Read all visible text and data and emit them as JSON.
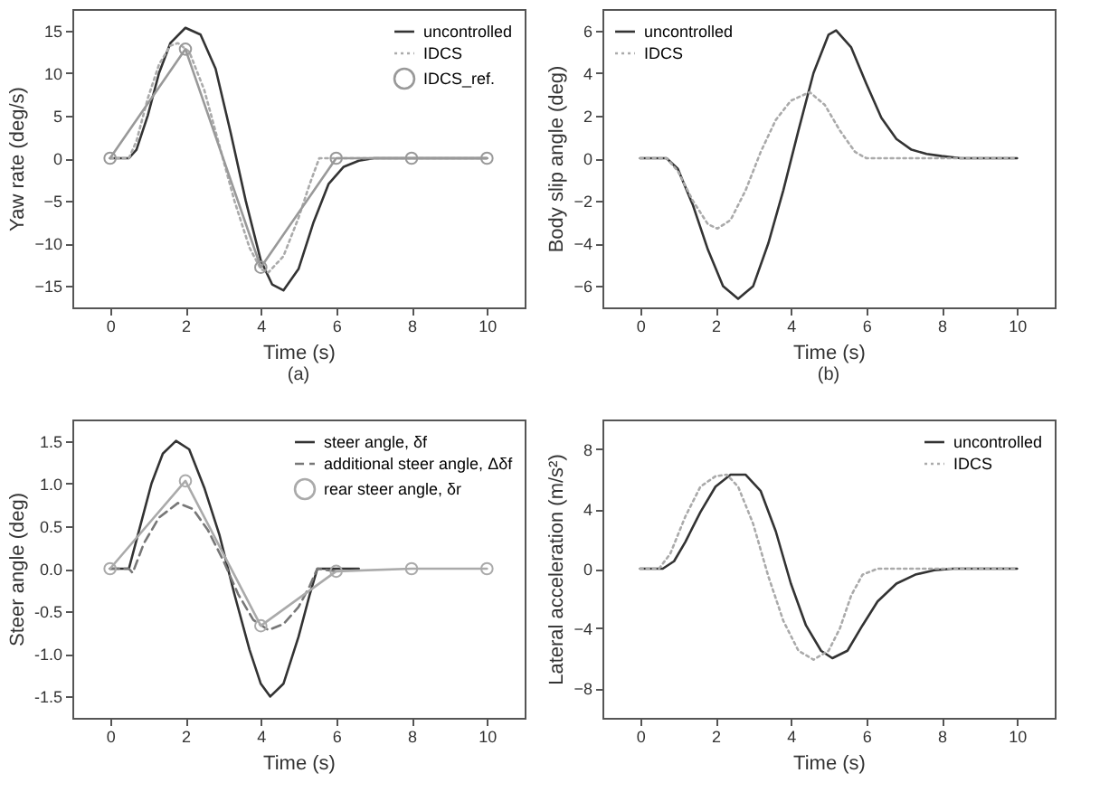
{
  "chart_data": [
    {
      "type": "line",
      "xlabel": "Time (s)",
      "ylabel": "Yaw rate (deg/s)",
      "annotations": [
        "(a)"
      ],
      "xlim": [
        -1,
        11
      ],
      "xticks": [
        0,
        2,
        4,
        6,
        8,
        10
      ],
      "ylim": [
        -17.5,
        17.5
      ],
      "yticks": [
        -15,
        -10,
        -5,
        0,
        5,
        10,
        15
      ],
      "grid": false,
      "legend": "top right",
      "series": [
        {
          "name": "uncontrolled",
          "color": "#333333",
          "line_style": "solid",
          "marker": "none",
          "x": [
            0,
            0.5,
            0.7,
            1.0,
            1.3,
            1.6,
            2.0,
            2.4,
            2.8,
            3.2,
            3.6,
            4.0,
            4.3,
            4.6,
            5.0,
            5.4,
            5.8,
            6.2,
            6.6,
            7.0,
            8,
            10
          ],
          "values": [
            0,
            0,
            1,
            5,
            10,
            13.5,
            15.3,
            14.5,
            10.5,
            3,
            -5,
            -12,
            -14.8,
            -15.5,
            -13,
            -7.5,
            -3,
            -1,
            -0.3,
            0,
            0,
            0
          ]
        },
        {
          "name": "IDCS",
          "color": "#aaaaaa",
          "line_style": "dotted",
          "marker": "none",
          "x": [
            0,
            0.5,
            0.7,
            1.0,
            1.3,
            1.6,
            1.8,
            2.1,
            2.5,
            2.9,
            3.3,
            3.7,
            4.0,
            4.2,
            4.6,
            5.0,
            5.3,
            5.55,
            6,
            8,
            10
          ],
          "values": [
            0,
            0,
            2,
            7,
            11,
            13.2,
            13.5,
            12.5,
            8,
            1.5,
            -5,
            -10.5,
            -13,
            -13.4,
            -11.5,
            -7,
            -3,
            0,
            0,
            0,
            0
          ]
        },
        {
          "name": "IDCS_ref.",
          "color": "#999999",
          "line_style": "solid",
          "marker": "circle",
          "x": [
            0,
            2,
            4,
            6,
            8,
            10
          ],
          "values": [
            0,
            12.8,
            -12.8,
            0,
            0,
            0
          ]
        }
      ]
    },
    {
      "type": "line",
      "xlabel": "Time (s)",
      "ylabel": "Body slip angle (deg)",
      "annotations": [
        "(b)"
      ],
      "xlim": [
        -1,
        11
      ],
      "xticks": [
        0,
        2,
        4,
        6,
        8,
        10
      ],
      "ylim": [
        -7,
        7
      ],
      "yticks": [
        -6,
        -4,
        -2,
        0,
        2,
        4,
        6
      ],
      "grid": false,
      "legend": "top left",
      "series": [
        {
          "name": "uncontrolled",
          "color": "#333333",
          "line_style": "solid",
          "marker": "none",
          "x": [
            0,
            0.7,
            1.0,
            1.4,
            1.8,
            2.2,
            2.6,
            3.0,
            3.4,
            3.8,
            4.2,
            4.6,
            5.0,
            5.2,
            5.6,
            6.0,
            6.4,
            6.8,
            7.2,
            7.6,
            8,
            8.5,
            10
          ],
          "values": [
            0,
            0,
            -0.5,
            -2.2,
            -4.3,
            -6,
            -6.6,
            -6,
            -4,
            -1.5,
            1.3,
            4,
            5.8,
            6,
            5.2,
            3.5,
            1.9,
            0.9,
            0.4,
            0.2,
            0.1,
            0,
            0
          ]
        },
        {
          "name": "IDCS",
          "color": "#aaaaaa",
          "line_style": "dotted",
          "marker": "none",
          "x": [
            0,
            0.7,
            1.0,
            1.4,
            1.8,
            2.05,
            2.4,
            2.8,
            3.2,
            3.6,
            4.0,
            4.5,
            4.9,
            5.3,
            5.7,
            6.0,
            7,
            10
          ],
          "values": [
            0,
            0,
            -0.6,
            -2,
            -3.1,
            -3.3,
            -2.9,
            -1.5,
            0.3,
            1.8,
            2.7,
            3.1,
            2.5,
            1.3,
            0.3,
            0,
            0,
            0
          ]
        }
      ]
    },
    {
      "type": "line",
      "xlabel": "Time (s)",
      "ylabel": "Steer angle (deg)",
      "xlim": [
        -1,
        11
      ],
      "xticks": [
        0,
        2,
        4,
        6,
        8,
        10
      ],
      "ylim": [
        -1.75,
        1.75
      ],
      "yticks": [
        {
          "value": -1.5,
          "label": "-1.5"
        },
        {
          "value": -1,
          "label": "-1.0"
        },
        {
          "value": -0.5,
          "label": "-0.5"
        },
        {
          "value": 0,
          "label": "0.0"
        },
        {
          "value": 0.5,
          "label": "0.5"
        },
        {
          "value": 1,
          "label": "1.0"
        },
        {
          "value": 1.5,
          "label": "1.5"
        }
      ],
      "grid": false,
      "legend": "top right",
      "series": [
        {
          "name": "steer angle, δf",
          "color": "#333333",
          "line_style": "solid",
          "marker": "none",
          "x": [
            0,
            0.5,
            0.8,
            1.1,
            1.4,
            1.75,
            2.1,
            2.5,
            2.9,
            3.3,
            3.7,
            4.0,
            4.25,
            4.6,
            5.0,
            5.3,
            5.5,
            6.6
          ],
          "values": [
            0,
            0,
            0.5,
            1.0,
            1.35,
            1.5,
            1.4,
            0.95,
            0.4,
            -0.3,
            -0.95,
            -1.35,
            -1.5,
            -1.35,
            -0.8,
            -0.3,
            0,
            0
          ]
        },
        {
          "name": "additional steer angle, Δδf",
          "color": "#777777",
          "line_style": "dashed",
          "marker": "none",
          "x": [
            0,
            0.5,
            0.6,
            0.9,
            1.3,
            1.8,
            2.2,
            2.6,
            3.0,
            3.4,
            3.8,
            4.2,
            4.6,
            5.0,
            5.3,
            5.5,
            6
          ],
          "values": [
            0,
            0,
            -0.05,
            0.3,
            0.6,
            0.77,
            0.7,
            0.45,
            0.1,
            -0.3,
            -0.6,
            -0.72,
            -0.65,
            -0.45,
            -0.2,
            0,
            -0.03
          ]
        },
        {
          "name": "rear steer angle, δr",
          "color": "#aaaaaa",
          "line_style": "solid",
          "marker": "circle",
          "x": [
            0,
            2,
            4,
            6,
            8,
            10
          ],
          "values": [
            0,
            1.03,
            -0.67,
            -0.03,
            0,
            0
          ]
        }
      ]
    },
    {
      "type": "line",
      "xlabel": "Time (s)",
      "ylabel": "Lateral acceleration (m/s²)",
      "xlim": [
        -1,
        11
      ],
      "xticks": [
        0,
        2,
        4,
        6,
        8,
        10
      ],
      "ylim": [
        -10,
        10
      ],
      "yticks": [
        -8,
        -4,
        0,
        4,
        8
      ],
      "grid": false,
      "legend": "top right",
      "series": [
        {
          "name": "uncontrolled",
          "color": "#333333",
          "line_style": "solid",
          "marker": "none",
          "x": [
            0,
            0.6,
            0.9,
            1.2,
            1.6,
            2.0,
            2.4,
            2.8,
            3.2,
            3.6,
            4.0,
            4.4,
            4.8,
            5.1,
            5.5,
            5.9,
            6.3,
            6.8,
            7.3,
            7.8,
            8.3,
            10
          ],
          "values": [
            0,
            0,
            0.5,
            1.8,
            3.8,
            5.5,
            6.3,
            6.3,
            5.2,
            2.5,
            -1,
            -3.8,
            -5.5,
            -6,
            -5.5,
            -3.8,
            -2.2,
            -1,
            -0.4,
            -0.1,
            0,
            0
          ]
        },
        {
          "name": "IDCS",
          "color": "#aaaaaa",
          "line_style": "dotted",
          "marker": "none",
          "x": [
            0,
            0.5,
            0.8,
            1.2,
            1.6,
            2.0,
            2.3,
            2.6,
            3.0,
            3.4,
            3.8,
            4.2,
            4.6,
            5.0,
            5.3,
            5.6,
            5.9,
            6.3,
            8,
            10
          ],
          "values": [
            0,
            0,
            1,
            3.5,
            5.5,
            6.2,
            6.3,
            5.5,
            3,
            -0.5,
            -3.5,
            -5.5,
            -6.1,
            -5.5,
            -4,
            -1.8,
            -0.4,
            0,
            0,
            0
          ]
        }
      ]
    }
  ]
}
